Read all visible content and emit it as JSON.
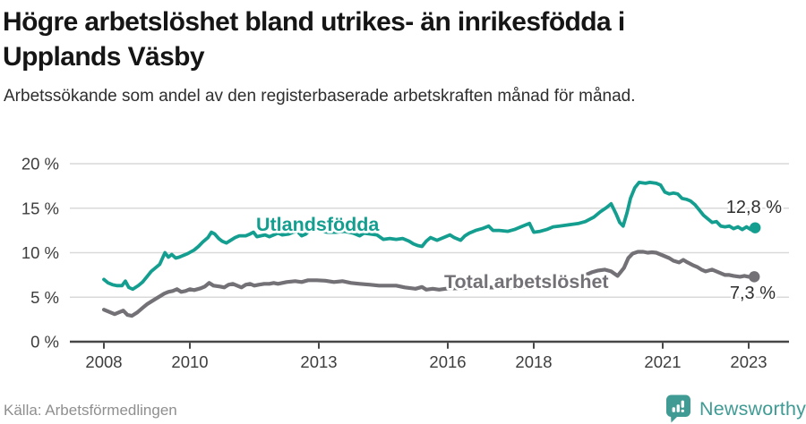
{
  "header": {
    "title_line1": "Högre arbetslöshet bland utrikes- än inrikesfödda i",
    "title_line2": "Upplands Väsby",
    "subtitle": "Arbetssökande som andel av den registerbaserade arbetskraften månad för månad."
  },
  "footer": {
    "source": "Källa: Arbetsförmedlingen",
    "brand": "Newsworthy"
  },
  "colors": {
    "foreign_series": "#149e90",
    "total_series": "#737076",
    "end_label": "#2d2d2d",
    "axis": "#474747",
    "tick_label": "#3d3d3d",
    "grid": "#d9d9d9",
    "brand_teal": "#3f9b94"
  },
  "chart_data": {
    "type": "line",
    "title": "Högre arbetslöshet bland utrikes- än inrikesfödda i Upplands Väsby",
    "subtitle": "Arbetssökande som andel av den registerbaserade arbetskraften månad för månad.",
    "xlabel": "",
    "ylabel": "",
    "ylim": [
      0,
      20
    ],
    "xlim": [
      2007.2,
      2023.9
    ],
    "grid": true,
    "legend_position": "inline-labels",
    "y_ticks": [
      {
        "value": 0,
        "label": "0 %"
      },
      {
        "value": 5,
        "label": "5 %"
      },
      {
        "value": 10,
        "label": "10 %"
      },
      {
        "value": 15,
        "label": "15 %"
      },
      {
        "value": 20,
        "label": "20 %"
      }
    ],
    "x_ticks": [
      {
        "value": 2008,
        "label": "2008"
      },
      {
        "value": 2010,
        "label": "2010"
      },
      {
        "value": 2013,
        "label": "2013"
      },
      {
        "value": 2016,
        "label": "2016"
      },
      {
        "value": 2018,
        "label": "2018"
      },
      {
        "value": 2021,
        "label": "2021"
      },
      {
        "value": 2023,
        "label": "2023"
      }
    ],
    "series": [
      {
        "name": "Utlandsfödda",
        "color": "#149e90",
        "end_label": "12,8 %",
        "end_value": 12.8,
        "points": [
          [
            2008.0,
            7.0
          ],
          [
            2008.1,
            6.6
          ],
          [
            2008.2,
            6.4
          ],
          [
            2008.3,
            6.3
          ],
          [
            2008.42,
            6.3
          ],
          [
            2008.5,
            6.8
          ],
          [
            2008.58,
            6.1
          ],
          [
            2008.67,
            5.9
          ],
          [
            2008.8,
            6.3
          ],
          [
            2008.9,
            6.7
          ],
          [
            2009.0,
            7.3
          ],
          [
            2009.1,
            7.9
          ],
          [
            2009.2,
            8.3
          ],
          [
            2009.3,
            8.7
          ],
          [
            2009.42,
            10.0
          ],
          [
            2009.5,
            9.5
          ],
          [
            2009.58,
            9.8
          ],
          [
            2009.67,
            9.4
          ],
          [
            2009.75,
            9.5
          ],
          [
            2009.85,
            9.7
          ],
          [
            2009.95,
            9.9
          ],
          [
            2010.1,
            10.3
          ],
          [
            2010.2,
            10.7
          ],
          [
            2010.3,
            11.2
          ],
          [
            2010.42,
            11.7
          ],
          [
            2010.5,
            12.3
          ],
          [
            2010.58,
            12.1
          ],
          [
            2010.67,
            11.6
          ],
          [
            2010.75,
            11.3
          ],
          [
            2010.85,
            11.1
          ],
          [
            2010.95,
            11.4
          ],
          [
            2011.05,
            11.7
          ],
          [
            2011.15,
            11.9
          ],
          [
            2011.3,
            11.9
          ],
          [
            2011.4,
            12.1
          ],
          [
            2011.48,
            12.3
          ],
          [
            2011.56,
            11.8
          ],
          [
            2011.65,
            11.9
          ],
          [
            2011.75,
            12.0
          ],
          [
            2011.85,
            11.8
          ],
          [
            2011.95,
            12.0
          ],
          [
            2012.05,
            12.2
          ],
          [
            2012.15,
            12.0
          ],
          [
            2012.3,
            12.1
          ],
          [
            2012.4,
            12.3
          ],
          [
            2012.5,
            12.4
          ],
          [
            2012.6,
            11.9
          ],
          [
            2012.7,
            12.1
          ],
          [
            2012.8,
            12.6
          ],
          [
            2012.9,
            12.5
          ],
          [
            2013.0,
            12.5
          ],
          [
            2013.2,
            12.3
          ],
          [
            2013.4,
            12.3
          ],
          [
            2013.6,
            12.4
          ],
          [
            2013.8,
            12.2
          ],
          [
            2013.95,
            11.9
          ],
          [
            2014.05,
            12.2
          ],
          [
            2014.2,
            12.1
          ],
          [
            2014.35,
            12.0
          ],
          [
            2014.5,
            11.5
          ],
          [
            2014.65,
            11.6
          ],
          [
            2014.8,
            11.5
          ],
          [
            2014.95,
            11.6
          ],
          [
            2015.1,
            11.3
          ],
          [
            2015.2,
            11.0
          ],
          [
            2015.3,
            10.8
          ],
          [
            2015.4,
            10.7
          ],
          [
            2015.5,
            11.3
          ],
          [
            2015.6,
            11.7
          ],
          [
            2015.75,
            11.4
          ],
          [
            2015.85,
            11.6
          ],
          [
            2015.95,
            11.8
          ],
          [
            2016.05,
            12.0
          ],
          [
            2016.15,
            11.7
          ],
          [
            2016.3,
            11.4
          ],
          [
            2016.4,
            11.9
          ],
          [
            2016.5,
            12.2
          ],
          [
            2016.65,
            12.5
          ],
          [
            2016.8,
            12.7
          ],
          [
            2016.95,
            13.0
          ],
          [
            2017.05,
            12.5
          ],
          [
            2017.2,
            12.5
          ],
          [
            2017.4,
            12.4
          ],
          [
            2017.55,
            12.6
          ],
          [
            2017.7,
            12.9
          ],
          [
            2017.9,
            13.3
          ],
          [
            2018.0,
            12.3
          ],
          [
            2018.15,
            12.4
          ],
          [
            2018.3,
            12.6
          ],
          [
            2018.45,
            12.9
          ],
          [
            2018.6,
            13.0
          ],
          [
            2018.75,
            13.1
          ],
          [
            2018.9,
            13.2
          ],
          [
            2019.05,
            13.3
          ],
          [
            2019.2,
            13.5
          ],
          [
            2019.4,
            14.0
          ],
          [
            2019.55,
            14.6
          ],
          [
            2019.7,
            15.1
          ],
          [
            2019.8,
            15.5
          ],
          [
            2019.92,
            14.3
          ],
          [
            2020.0,
            13.4
          ],
          [
            2020.08,
            13.0
          ],
          [
            2020.17,
            14.5
          ],
          [
            2020.25,
            16.1
          ],
          [
            2020.35,
            17.3
          ],
          [
            2020.45,
            17.9
          ],
          [
            2020.6,
            17.8
          ],
          [
            2020.7,
            17.9
          ],
          [
            2020.85,
            17.8
          ],
          [
            2020.95,
            17.6
          ],
          [
            2021.05,
            16.8
          ],
          [
            2021.15,
            16.6
          ],
          [
            2021.25,
            16.7
          ],
          [
            2021.35,
            16.6
          ],
          [
            2021.45,
            16.1
          ],
          [
            2021.55,
            16.0
          ],
          [
            2021.65,
            15.8
          ],
          [
            2021.75,
            15.4
          ],
          [
            2021.85,
            14.8
          ],
          [
            2021.95,
            14.2
          ],
          [
            2022.05,
            13.8
          ],
          [
            2022.15,
            13.4
          ],
          [
            2022.25,
            13.5
          ],
          [
            2022.35,
            13.0
          ],
          [
            2022.45,
            12.9
          ],
          [
            2022.55,
            13.0
          ],
          [
            2022.65,
            12.7
          ],
          [
            2022.75,
            12.9
          ],
          [
            2022.85,
            12.6
          ],
          [
            2022.95,
            12.9
          ],
          [
            2023.05,
            12.6
          ],
          [
            2023.15,
            12.8
          ]
        ]
      },
      {
        "name": "Total arbetslöshet",
        "color": "#737076",
        "end_label": "7,3 %",
        "end_value": 7.3,
        "points": [
          [
            2008.0,
            3.6
          ],
          [
            2008.15,
            3.3
          ],
          [
            2008.25,
            3.1
          ],
          [
            2008.35,
            3.3
          ],
          [
            2008.45,
            3.5
          ],
          [
            2008.55,
            3.0
          ],
          [
            2008.65,
            2.9
          ],
          [
            2008.78,
            3.3
          ],
          [
            2008.9,
            3.8
          ],
          [
            2009.0,
            4.2
          ],
          [
            2009.1,
            4.5
          ],
          [
            2009.2,
            4.8
          ],
          [
            2009.3,
            5.1
          ],
          [
            2009.4,
            5.4
          ],
          [
            2009.5,
            5.6
          ],
          [
            2009.6,
            5.7
          ],
          [
            2009.7,
            5.9
          ],
          [
            2009.8,
            5.6
          ],
          [
            2009.9,
            5.7
          ],
          [
            2010.0,
            5.9
          ],
          [
            2010.1,
            5.8
          ],
          [
            2010.25,
            6.0
          ],
          [
            2010.35,
            6.2
          ],
          [
            2010.45,
            6.6
          ],
          [
            2010.55,
            6.3
          ],
          [
            2010.7,
            6.2
          ],
          [
            2010.8,
            6.1
          ],
          [
            2010.9,
            6.4
          ],
          [
            2011.0,
            6.5
          ],
          [
            2011.1,
            6.3
          ],
          [
            2011.2,
            6.1
          ],
          [
            2011.3,
            6.4
          ],
          [
            2011.4,
            6.5
          ],
          [
            2011.5,
            6.3
          ],
          [
            2011.6,
            6.4
          ],
          [
            2011.73,
            6.5
          ],
          [
            2011.85,
            6.5
          ],
          [
            2011.95,
            6.6
          ],
          [
            2012.05,
            6.5
          ],
          [
            2012.25,
            6.7
          ],
          [
            2012.45,
            6.8
          ],
          [
            2012.6,
            6.7
          ],
          [
            2012.75,
            6.9
          ],
          [
            2012.95,
            6.9
          ],
          [
            2013.15,
            6.85
          ],
          [
            2013.35,
            6.7
          ],
          [
            2013.55,
            6.8
          ],
          [
            2013.75,
            6.6
          ],
          [
            2013.95,
            6.5
          ],
          [
            2014.2,
            6.4
          ],
          [
            2014.4,
            6.3
          ],
          [
            2014.6,
            6.3
          ],
          [
            2014.8,
            6.3
          ],
          [
            2015.0,
            6.1
          ],
          [
            2015.25,
            5.95
          ],
          [
            2015.4,
            6.15
          ],
          [
            2015.5,
            5.85
          ],
          [
            2015.65,
            5.95
          ],
          [
            2015.8,
            5.85
          ],
          [
            2015.95,
            5.95
          ],
          [
            2016.2,
            6.0
          ],
          [
            2016.6,
            6.05
          ],
          [
            2017.0,
            6.1
          ],
          [
            2017.45,
            6.05
          ],
          [
            2017.9,
            6.2
          ],
          [
            2018.3,
            6.3
          ],
          [
            2018.6,
            6.4
          ],
          [
            2018.8,
            6.6
          ],
          [
            2019.0,
            6.9
          ],
          [
            2019.2,
            7.5
          ],
          [
            2019.35,
            7.8
          ],
          [
            2019.5,
            8.0
          ],
          [
            2019.65,
            8.1
          ],
          [
            2019.8,
            7.9
          ],
          [
            2019.95,
            7.4
          ],
          [
            2020.1,
            8.3
          ],
          [
            2020.2,
            9.4
          ],
          [
            2020.3,
            9.9
          ],
          [
            2020.42,
            10.1
          ],
          [
            2020.55,
            10.1
          ],
          [
            2020.65,
            10.0
          ],
          [
            2020.75,
            10.05
          ],
          [
            2020.85,
            10.0
          ],
          [
            2021.0,
            9.7
          ],
          [
            2021.15,
            9.4
          ],
          [
            2021.25,
            9.1
          ],
          [
            2021.38,
            8.9
          ],
          [
            2021.48,
            9.2
          ],
          [
            2021.58,
            8.9
          ],
          [
            2021.7,
            8.6
          ],
          [
            2021.8,
            8.4
          ],
          [
            2021.9,
            8.1
          ],
          [
            2022.0,
            7.9
          ],
          [
            2022.15,
            8.1
          ],
          [
            2022.25,
            7.9
          ],
          [
            2022.35,
            7.7
          ],
          [
            2022.45,
            7.5
          ],
          [
            2022.55,
            7.5
          ],
          [
            2022.65,
            7.4
          ],
          [
            2022.8,
            7.3
          ],
          [
            2022.9,
            7.4
          ],
          [
            2023.0,
            7.3
          ],
          [
            2023.13,
            7.3
          ]
        ]
      }
    ]
  }
}
